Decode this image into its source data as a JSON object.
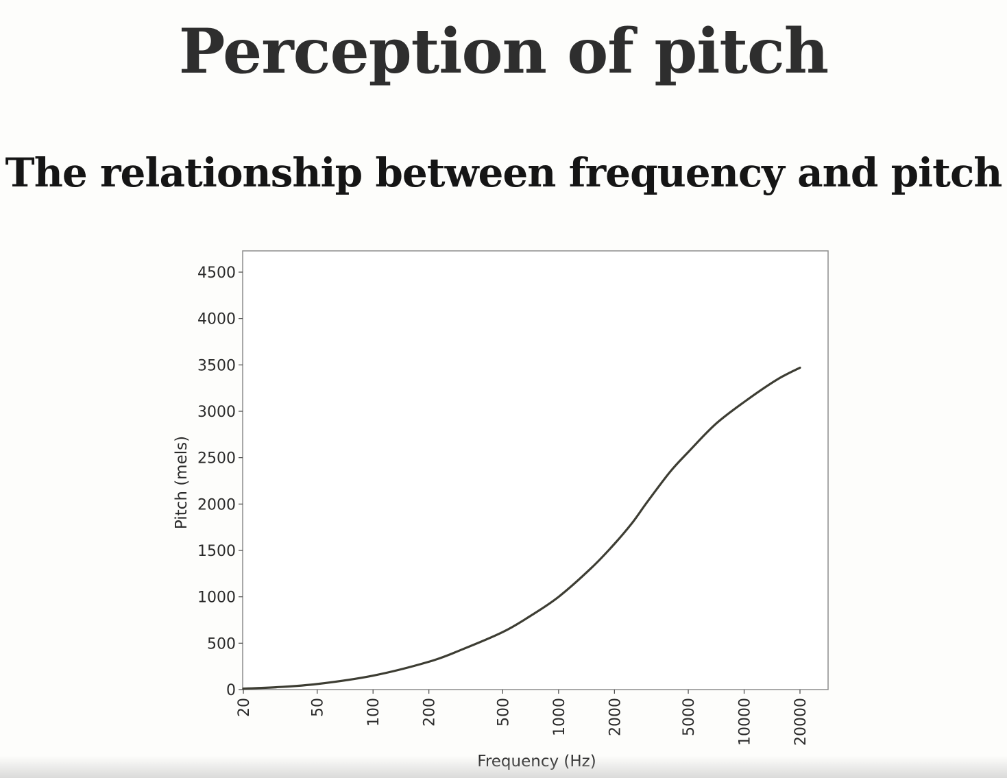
{
  "slide": {
    "title": "Perception of pitch",
    "subtitle": "The relationship between frequency and pitch"
  },
  "chart_data": {
    "type": "line",
    "xscale": "log",
    "xlabel": "Frequency (Hz)",
    "ylabel": "Pitch (mels)",
    "xlim": [
      20,
      20000
    ],
    "ylim": [
      0,
      4700
    ],
    "x_ticks": [
      20,
      50,
      100,
      200,
      500,
      1000,
      2000,
      5000,
      10000,
      20000
    ],
    "y_ticks": [
      0,
      500,
      1000,
      1500,
      2000,
      2500,
      3000,
      3500,
      4000,
      4500
    ],
    "grid": false,
    "series": [
      {
        "color": "#3d3d33",
        "points": [
          [
            20,
            10
          ],
          [
            30,
            25
          ],
          [
            50,
            60
          ],
          [
            100,
            150
          ],
          [
            200,
            300
          ],
          [
            300,
            430
          ],
          [
            500,
            620
          ],
          [
            700,
            790
          ],
          [
            1000,
            1000
          ],
          [
            1500,
            1310
          ],
          [
            2000,
            1570
          ],
          [
            2500,
            1800
          ],
          [
            3000,
            2020
          ],
          [
            4000,
            2350
          ],
          [
            5000,
            2560
          ],
          [
            7000,
            2860
          ],
          [
            10000,
            3100
          ],
          [
            15000,
            3340
          ],
          [
            20000,
            3470
          ]
        ]
      }
    ]
  }
}
